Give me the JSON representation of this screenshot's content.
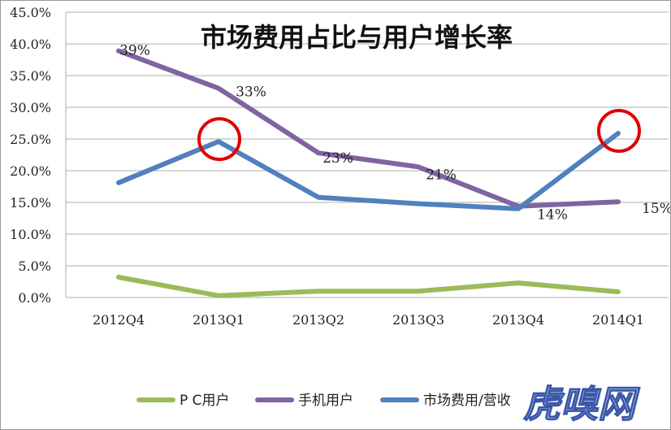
{
  "chart_data": {
    "type": "line",
    "title": "市场费用占比与用户增长率",
    "categories": [
      "2012Q4",
      "2013Q1",
      "2013Q2",
      "2013Q3",
      "2013Q4",
      "2014Q1"
    ],
    "ylim": [
      0,
      45
    ],
    "yticks": [
      "0.0%",
      "5.0%",
      "10.0%",
      "15.0%",
      "20.0%",
      "25.0%",
      "30.0%",
      "35.0%",
      "40.0%",
      "45.0%"
    ],
    "grid": true,
    "legend_position": "bottom",
    "series": [
      {
        "name": "P C用户",
        "color": "#9bbb59",
        "values": [
          3.2,
          0.3,
          1.0,
          1.0,
          2.3,
          0.9
        ]
      },
      {
        "name": "手机用户",
        "color": "#8064a2",
        "values": [
          38.9,
          33.0,
          22.8,
          20.6,
          14.4,
          15.1
        ],
        "data_labels": [
          "39%",
          "33%",
          "23%",
          "21%",
          "14%",
          "15%"
        ]
      },
      {
        "name": "市场费用/营收",
        "color": "#4f81bd",
        "values": [
          18.1,
          24.6,
          15.8,
          14.8,
          14.0,
          25.9
        ]
      }
    ],
    "annotations": [
      {
        "type": "circle",
        "color": "#e00000",
        "category": "2013Q1",
        "value": 24.6
      },
      {
        "type": "circle",
        "color": "#e00000",
        "category": "2014Q1",
        "value": 25.9
      }
    ]
  },
  "watermark": "虎嗅网"
}
